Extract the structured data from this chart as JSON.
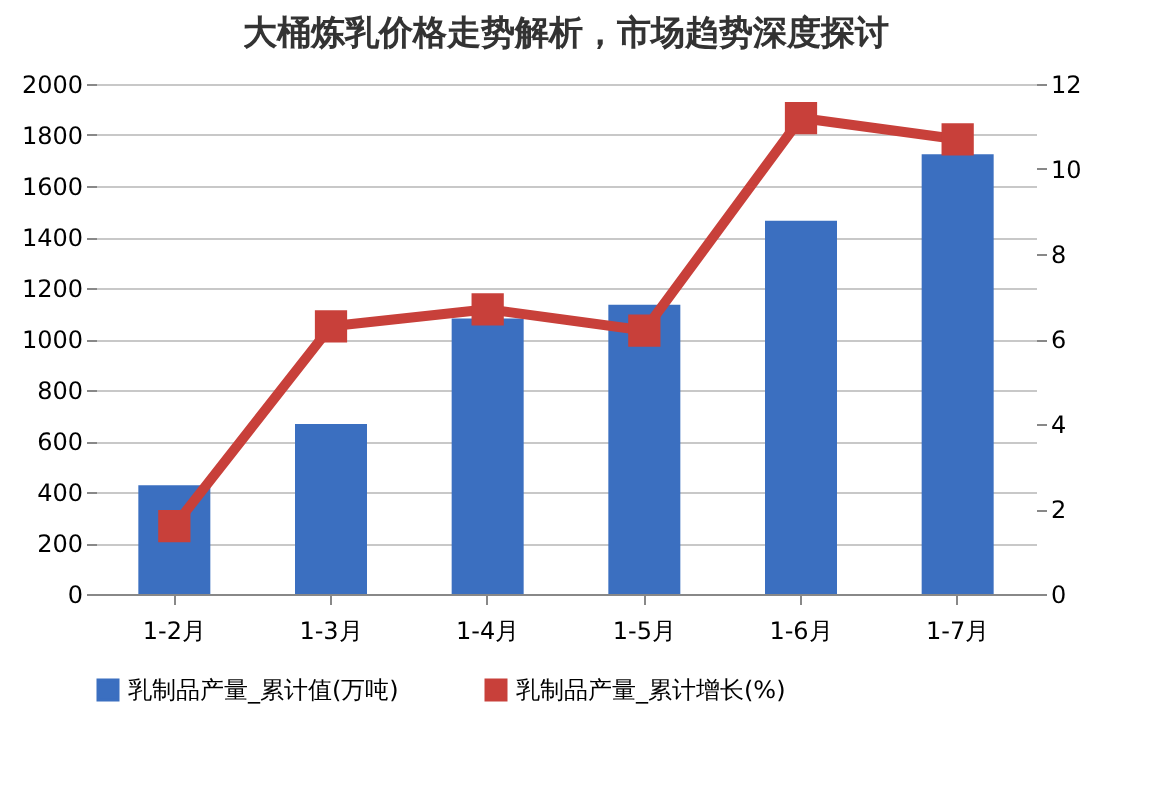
{
  "chart_data": {
    "type": "bar",
    "title": "大桶炼乳价格走势解析，市场趋势深度探讨",
    "categories": [
      "1-2月",
      "1-3月",
      "1-4月",
      "1-5月",
      "1-6月",
      "1-7月"
    ],
    "series": [
      {
        "name": "乳制品产量_累计值(万吨)",
        "color": "#3b6fc0",
        "values": [
          426,
          667,
          1080,
          1134,
          1464,
          1725
        ]
      },
      {
        "name": "乳制品产量_累计增长(%)",
        "type": "line",
        "axis": "y2",
        "color": "#c8403a",
        "values": [
          1.6,
          6.3,
          6.7,
          6.2,
          11.2,
          10.7
        ]
      }
    ],
    "ylim": [
      0,
      2000
    ],
    "yticks": [
      0,
      200,
      400,
      600,
      800,
      1000,
      1200,
      1400,
      1600,
      1800,
      2000
    ],
    "y2lim": [
      0,
      12
    ],
    "y2ticks": [
      0,
      2,
      4,
      6,
      8,
      10,
      12
    ],
    "grid": "y",
    "legend": "bottom",
    "marker": "square"
  }
}
